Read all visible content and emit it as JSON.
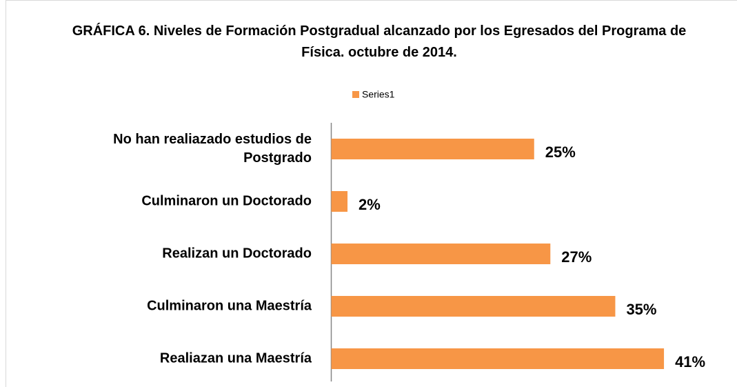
{
  "chart_data": {
    "type": "bar",
    "orientation": "horizontal",
    "title": "GRÁFICA 6. Niveles de Formación Postgradual alcanzado por los Egresados del Programa de Física. octubre de 2014.",
    "categories": [
      "No han realiazado estudios de Postgrado",
      "Culminaron un Doctorado",
      "Realizan un Doctorado",
      "Culminaron una Maestría",
      "Realiazan una Maestría"
    ],
    "series": [
      {
        "name": "Series1",
        "color": "#f79646",
        "values": [
          25,
          2,
          27,
          35,
          41
        ],
        "value_labels": [
          "25%",
          "2%",
          "27%",
          "35%",
          "41%"
        ]
      }
    ],
    "xlim": [
      0,
      50
    ],
    "legend": "top"
  }
}
